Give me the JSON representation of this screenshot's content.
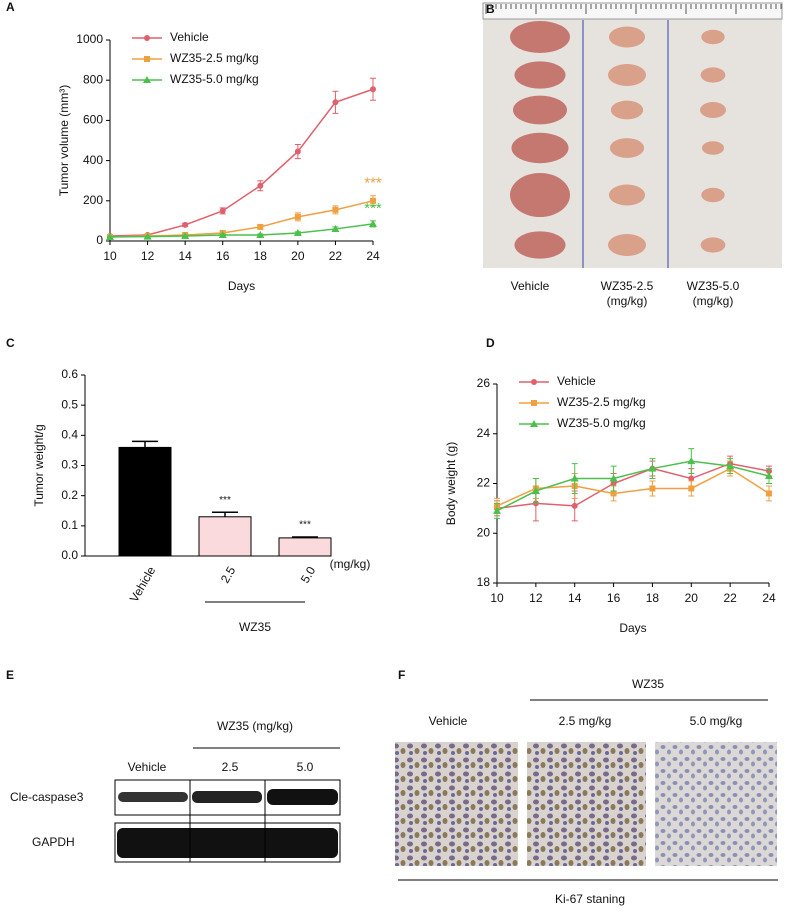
{
  "panel_labels": [
    "A",
    "B",
    "C",
    "D",
    "E",
    "F"
  ],
  "chart_data": [
    {
      "type": "line",
      "ylabel": "Tumor volume (mm³)",
      "xlabel": "Days",
      "x": [
        10,
        12,
        14,
        16,
        18,
        20,
        22,
        24
      ],
      "xlim": [
        10,
        24
      ],
      "xticks": [
        10,
        12,
        14,
        16,
        18,
        20,
        22,
        24
      ],
      "ylim": [
        0,
        1000
      ],
      "yticks": [
        0,
        200,
        400,
        600,
        800,
        1000
      ],
      "legend": "upper left",
      "series": [
        {
          "name": "Vehicle",
          "color": "#e0606c",
          "marker": "circle",
          "values": [
            25,
            30,
            80,
            150,
            275,
            445,
            690,
            755
          ],
          "errors": [
            5,
            5,
            8,
            15,
            25,
            35,
            55,
            55
          ]
        },
        {
          "name": "WZ35-2.5 mg/kg",
          "color": "#f0a040",
          "marker": "square",
          "values": [
            20,
            25,
            30,
            40,
            70,
            120,
            155,
            200
          ],
          "errors": [
            4,
            4,
            5,
            8,
            10,
            20,
            20,
            25
          ],
          "annotation": "***"
        },
        {
          "name": "WZ35-5.0 mg/kg",
          "color": "#4cc04c",
          "marker": "triangle",
          "values": [
            20,
            22,
            25,
            30,
            30,
            40,
            60,
            85
          ],
          "errors": [
            3,
            3,
            4,
            4,
            5,
            6,
            10,
            15
          ],
          "annotation": "***"
        }
      ]
    },
    {
      "type": "bar",
      "ylabel": "Tumor weight/g",
      "categories": [
        "Vehicle",
        "2.5",
        "5.0"
      ],
      "values": [
        0.36,
        0.13,
        0.06
      ],
      "errors": [
        0.02,
        0.015,
        0.003
      ],
      "colors": [
        "#000000",
        "#fadadd",
        "#fadadd"
      ],
      "annotations": [
        null,
        "***",
        "***"
      ],
      "unit_label": "(mg/kg)",
      "group_label": "WZ35",
      "ylim": [
        0,
        0.6
      ],
      "yticks": [
        {
          "value": 0,
          "label": "0.0"
        },
        0.1,
        0.2,
        0.3,
        0.4,
        0.5,
        0.6
      ]
    },
    {
      "type": "line",
      "ylabel": "Body weight (g)",
      "xlabel": "Days",
      "x": [
        10,
        12,
        14,
        16,
        18,
        20,
        22,
        24
      ],
      "xlim": [
        10,
        24
      ],
      "xticks": [
        10,
        12,
        14,
        16,
        18,
        20,
        22,
        24
      ],
      "ylim": [
        18,
        26
      ],
      "yticks": [
        18,
        20,
        22,
        24,
        26
      ],
      "legend": "upper left",
      "series": [
        {
          "name": "Vehicle",
          "color": "#e0606c",
          "marker": "circle",
          "values": [
            21.0,
            21.2,
            21.1,
            22.0,
            22.6,
            22.2,
            22.8,
            22.5
          ],
          "errors": [
            0.3,
            0.7,
            0.6,
            0.4,
            0.3,
            0.4,
            0.3,
            0.2
          ]
        },
        {
          "name": "WZ35-2.5 mg/kg",
          "color": "#f0a040",
          "marker": "square",
          "values": [
            21.1,
            21.8,
            21.9,
            21.6,
            21.8,
            21.8,
            22.6,
            21.6
          ],
          "errors": [
            0.3,
            0.4,
            0.5,
            0.3,
            0.3,
            0.3,
            0.3,
            0.3
          ]
        },
        {
          "name": "WZ35-5.0 mg/kg",
          "color": "#4cc04c",
          "marker": "triangle",
          "values": [
            20.9,
            21.7,
            22.2,
            22.2,
            22.6,
            22.9,
            22.7,
            22.3
          ],
          "errors": [
            0.3,
            0.5,
            0.6,
            0.5,
            0.4,
            0.5,
            0.3,
            0.3
          ]
        }
      ]
    }
  ],
  "photo_b": {
    "groups": [
      "Vehicle",
      "WZ35-2.5\n(mg/kg)",
      "WZ35-5.0\n(mg/kg)"
    ]
  },
  "blot_e": {
    "group_label": "WZ35 (mg/kg)",
    "lanes": [
      "Vehicle",
      "2.5",
      "5.0"
    ],
    "rows": [
      "Cle-caspase3",
      "GAPDH"
    ]
  },
  "stain_f": {
    "group_label": "WZ35",
    "columns": [
      "Vehicle",
      "2.5 mg/kg",
      "5.0 mg/kg"
    ],
    "caption": "Ki-67 staning"
  }
}
